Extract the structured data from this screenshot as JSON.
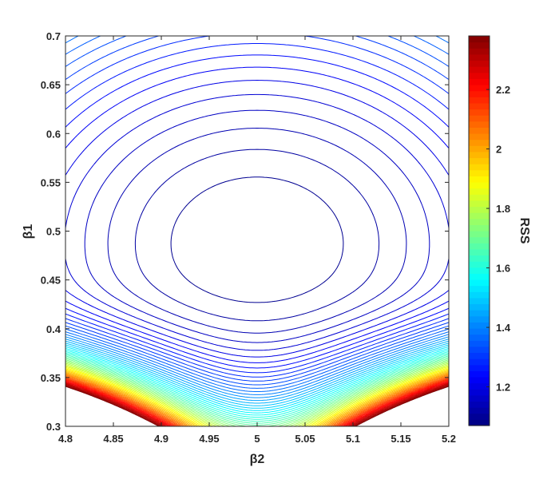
{
  "chart_data": {
    "type": "contour",
    "title": "",
    "xlabel": "β2",
    "ylabel": "β1",
    "colorbar_label": "RSS",
    "xlim": [
      4.8,
      5.2
    ],
    "ylim": [
      0.3,
      0.7
    ],
    "x_ticks": [
      4.8,
      4.85,
      4.9,
      4.95,
      5,
      5.05,
      5.1,
      5.15,
      5.2
    ],
    "x_tick_labels": [
      "4.8",
      "4.85",
      "4.9",
      "4.95",
      "5",
      "5.05",
      "5.1",
      "5.15",
      "5.2"
    ],
    "y_ticks": [
      0.3,
      0.35,
      0.4,
      0.45,
      0.5,
      0.55,
      0.6,
      0.65,
      0.7
    ],
    "y_tick_labels": [
      "0.3",
      "0.35",
      "0.4",
      "0.45",
      "0.5",
      "0.55",
      "0.6",
      "0.65",
      "0.7"
    ],
    "colorbar_range": [
      1.07,
      2.38
    ],
    "colorbar_ticks": [
      1.2,
      1.4,
      1.6,
      1.8,
      2.0,
      2.2
    ],
    "colorbar_tick_labels": [
      "1.2",
      "1.4",
      "1.6",
      "1.8",
      "2",
      "2.2"
    ],
    "colormap": "jet",
    "minimum": {
      "beta2": 5.0,
      "beta1": 0.487
    },
    "grid": false,
    "legend": "colorbar-right"
  },
  "figure": {
    "background": "#ffffff",
    "axis_color": "#262626"
  }
}
